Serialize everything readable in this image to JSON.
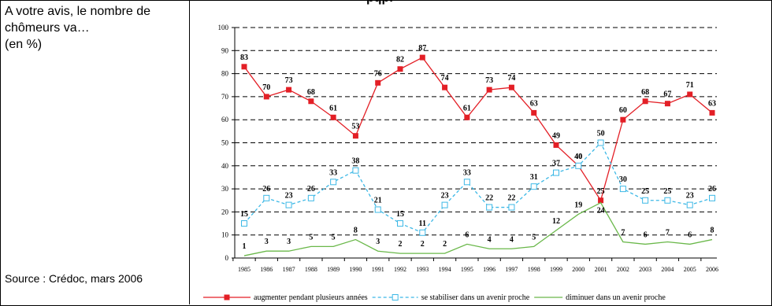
{
  "top_text_clip": "pqpi",
  "question": "A votre avis, le nombre de\nchômeurs va…\n(en %)",
  "source": "Source : Crédoc, mars 2006",
  "chart_data": {
    "type": "line",
    "x": [
      "1985",
      "1986",
      "1987",
      "1988",
      "1989",
      "1990",
      "1991",
      "1992",
      "1993",
      "1994",
      "1995",
      "1996",
      "1997",
      "1998",
      "1999",
      "2000",
      "2001",
      "2002",
      "2003",
      "2004",
      "2005",
      "2006"
    ],
    "ylim": [
      0,
      100
    ],
    "yticks": [
      0,
      10,
      20,
      30,
      40,
      50,
      60,
      70,
      80,
      90,
      100
    ],
    "grid": true,
    "legend_position": "bottom",
    "series": [
      {
        "name": "augmenter pendant plusieurs années",
        "color": "#e31f26",
        "style": "solid",
        "marker": "filled-square",
        "values": [
          83,
          70,
          73,
          68,
          61,
          53,
          76,
          82,
          87,
          74,
          61,
          73,
          74,
          63,
          49,
          40,
          25,
          60,
          68,
          67,
          71,
          63
        ]
      },
      {
        "name": "se stabiliser dans un avenir proche",
        "color": "#3cb8e6",
        "style": "dashed",
        "marker": "open-square",
        "values": [
          15,
          26,
          23,
          26,
          33,
          38,
          21,
          15,
          11,
          23,
          33,
          22,
          22,
          31,
          37,
          40,
          50,
          30,
          25,
          25,
          23,
          26
        ]
      },
      {
        "name": "diminuer dans un avenir proche",
        "color": "#6ab84a",
        "style": "solid",
        "marker": "none",
        "values": [
          1,
          3,
          3,
          5,
          5,
          8,
          3,
          2,
          2,
          2,
          6,
          4,
          4,
          5,
          12,
          19,
          24,
          7,
          6,
          7,
          6,
          8
        ]
      }
    ]
  }
}
